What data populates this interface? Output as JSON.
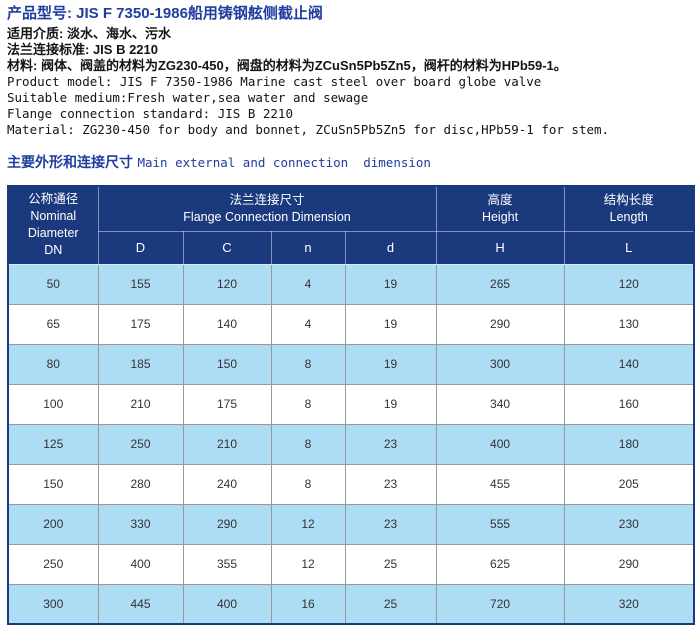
{
  "page": {
    "title": "产品型号: JIS F 7350-1986船用铸钢舷侧截止阀",
    "cn_lines": [
      "适用介质: 淡水、海水、污水",
      "法兰连接标准: JIS B 2210",
      "材料: 阀体、阀盖的材料为ZG230-450，阀盘的材料为ZCuSn5Pb5Zn5，阀杆的材料为HPb59-1。"
    ],
    "en_lines": [
      "Product model: JIS F 7350-1986 Marine cast steel over board globe valve",
      "Suitable medium:Fresh water,sea water and sewage",
      "Flange connection standard: JIS B 2210",
      "Material: ZG230-450 for body and bonnet, ZCuSn5Pb5Zn5 for disc,HPb59-1 for stem."
    ],
    "section_title_cn": "主要外形和连接尺寸",
    "section_title_en": "Main external and connection  dimension"
  },
  "table": {
    "dn_header": {
      "cn": "公称通径",
      "line2": "Nominal",
      "line3": "Diameter",
      "line4": "DN"
    },
    "flange_header": {
      "cn": "法兰连接尺寸",
      "en": "Flange Connection Dimension"
    },
    "height_header": {
      "cn": "高度",
      "en": "Height"
    },
    "length_header": {
      "cn": "结构长度",
      "en": "Length"
    },
    "sub_headers": {
      "d_outer": "D",
      "c": "C",
      "n": "n",
      "d_hole": "d",
      "h": "H",
      "l": "L"
    },
    "rows": [
      [
        "50",
        "155",
        "120",
        "4",
        "19",
        "265",
        "120"
      ],
      [
        "65",
        "175",
        "140",
        "4",
        "19",
        "290",
        "130"
      ],
      [
        "80",
        "185",
        "150",
        "8",
        "19",
        "300",
        "140"
      ],
      [
        "100",
        "210",
        "175",
        "8",
        "19",
        "340",
        "160"
      ],
      [
        "125",
        "250",
        "210",
        "8",
        "23",
        "400",
        "180"
      ],
      [
        "150",
        "280",
        "240",
        "8",
        "23",
        "455",
        "205"
      ],
      [
        "200",
        "330",
        "290",
        "12",
        "23",
        "555",
        "230"
      ],
      [
        "250",
        "400",
        "355",
        "12",
        "25",
        "625",
        "290"
      ],
      [
        "300",
        "445",
        "400",
        "16",
        "25",
        "720",
        "320"
      ]
    ]
  },
  "colors": {
    "header_navy": "#1b3a7d",
    "row_highlight": "#addcf5",
    "title_blue": "#1e3d9e",
    "grid_line": "#999999"
  }
}
